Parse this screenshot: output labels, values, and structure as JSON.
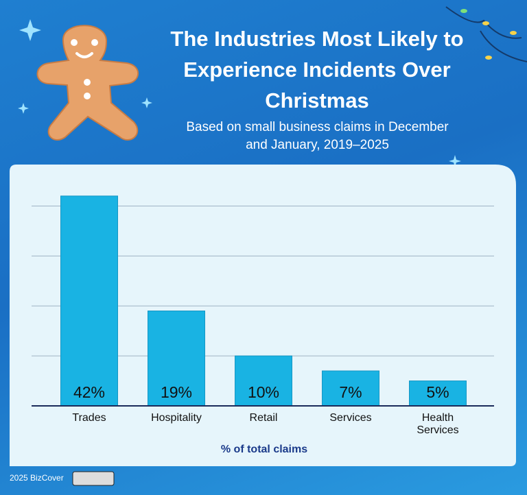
{
  "chart_data": {
    "type": "bar",
    "title": "The Industries Most Likely to Experience Incidents Over Christmas",
    "subtitle": "Based on small business claims in December and January, 2019–2025",
    "x_label": "% of total claims",
    "categories": [
      "Trades",
      "Hospitality",
      "Retail",
      "Services",
      "Health Services"
    ],
    "values": [
      42,
      19,
      10,
      7,
      5
    ],
    "value_labels": [
      "42%",
      "19%",
      "10%",
      "7%",
      "5%"
    ],
    "color": "#19b3e3",
    "ylim": [
      0,
      45
    ],
    "yticks": [
      0,
      10,
      20,
      30,
      40
    ],
    "grid": true,
    "footer": "2025 BizCover"
  }
}
